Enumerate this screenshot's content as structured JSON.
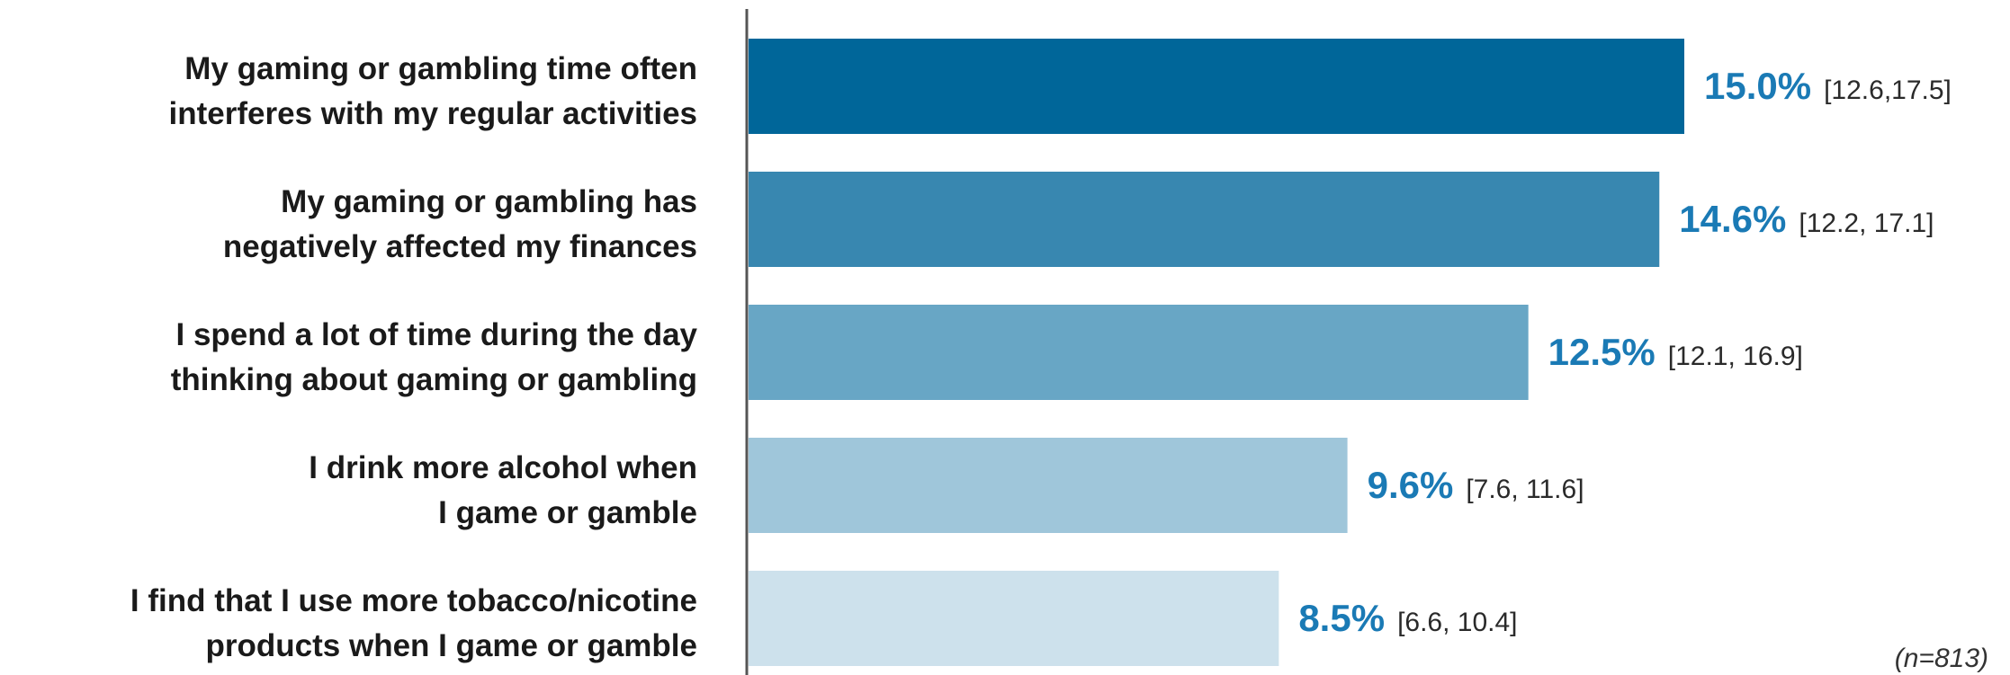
{
  "chart_data": {
    "type": "bar",
    "orientation": "horizontal",
    "categories": [
      [
        "My gaming or gambling time often",
        "interferes with my regular activities"
      ],
      [
        "My gaming or gambling has",
        "negatively affected my finances"
      ],
      [
        "I spend a lot of time during the day",
        "thinking about gaming or gambling"
      ],
      [
        "I drink more alcohol when",
        "I game or gamble"
      ],
      [
        "I find that I use more tobacco/nicotine",
        "products when I game or gamble"
      ]
    ],
    "values": [
      15.0,
      14.6,
      12.5,
      9.6,
      8.5
    ],
    "value_labels": [
      "15.0%",
      "14.6%",
      "12.5%",
      "9.6%",
      "8.5%"
    ],
    "ci_labels": [
      "[12.6,17.5]",
      "[12.2, 17.1]",
      "[12.1, 16.9]",
      "[7.6, 11.6]",
      "[6.6, 10.4]"
    ],
    "xlim": [
      0,
      15.0
    ],
    "grid": false,
    "note": "(n=813)"
  },
  "colors": {
    "bars": [
      "#006699",
      "#3887b0",
      "#68a6c5",
      "#9fc6da",
      "#cde1ec"
    ],
    "value_text": "#1a7ab5",
    "axis": "#555555"
  }
}
